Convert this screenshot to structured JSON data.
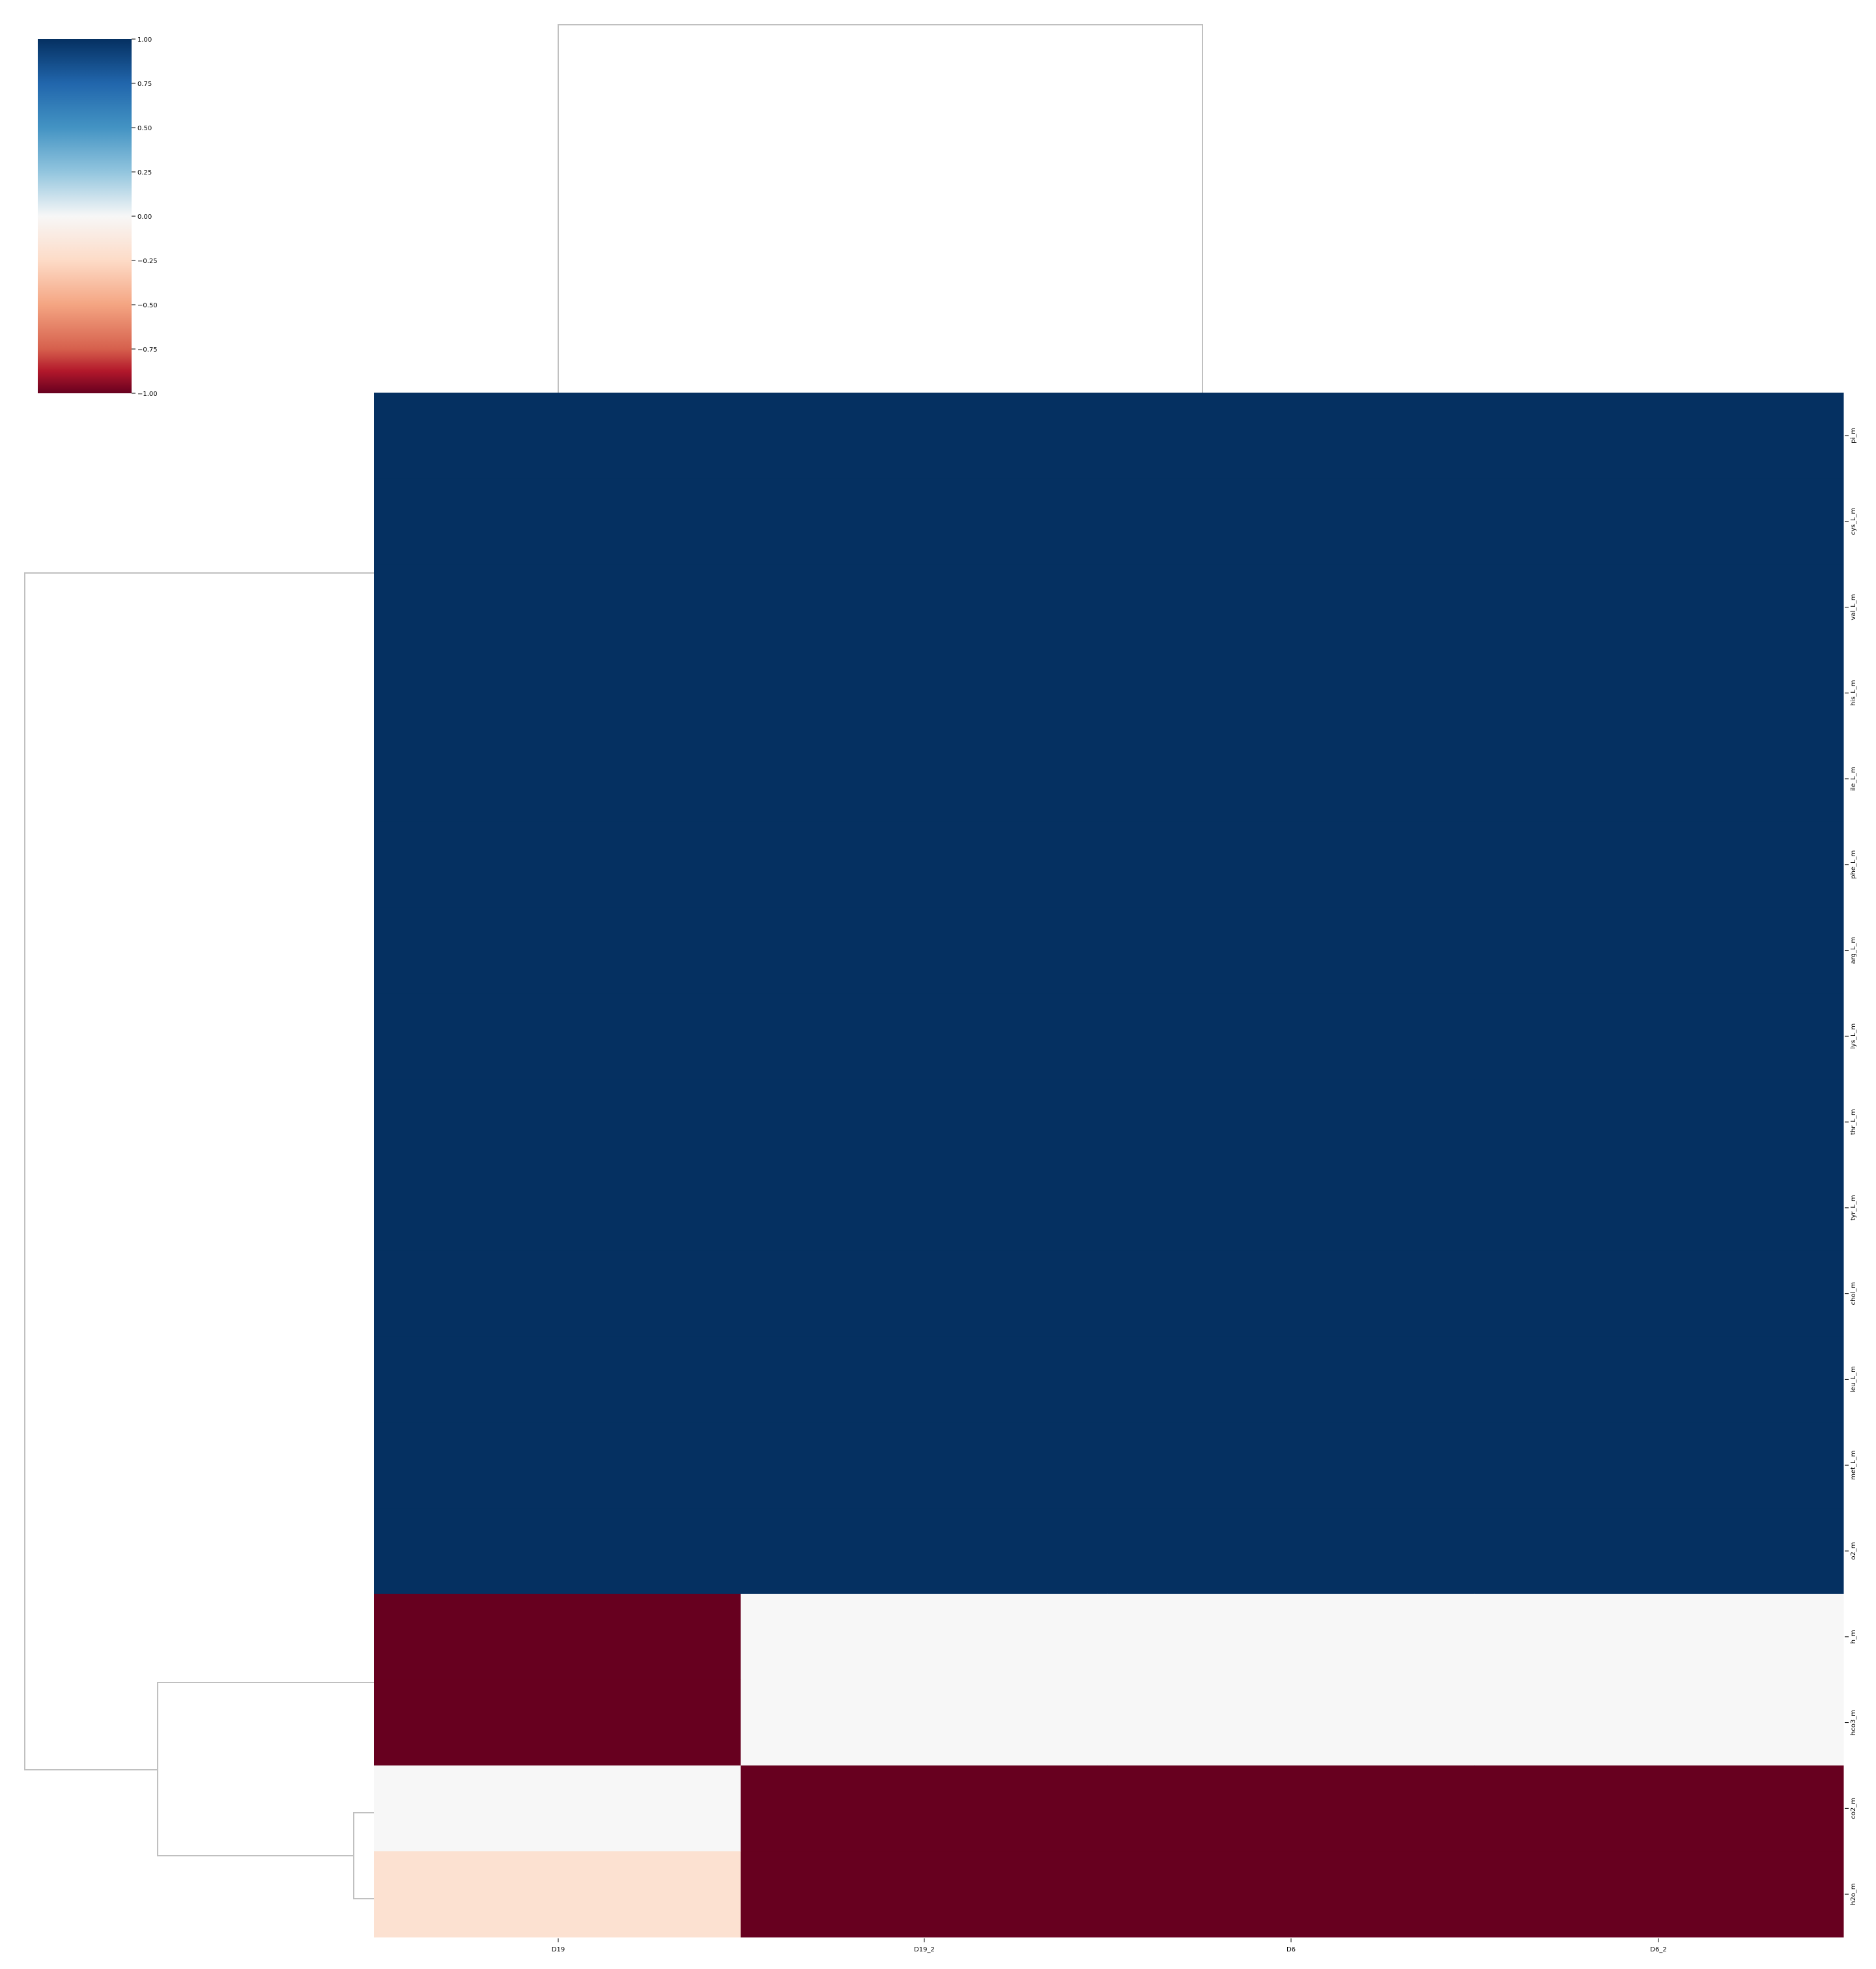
{
  "chart_data": {
    "type": "heatmap",
    "title": "",
    "xlabel": "",
    "ylabel": "",
    "columns": [
      "D19",
      "D19_2",
      "D6",
      "D6_2"
    ],
    "rows": [
      "pi_m",
      "cys_L_m",
      "val_L_m",
      "his_L_m",
      "ile_L_m",
      "phe_L_m",
      "arg_L_m",
      "lys_L_m",
      "thr_L_m",
      "tyr_L_m",
      "chol_m",
      "leu_L_m",
      "met_L_m",
      "o2_m",
      "h_m",
      "hco3_m",
      "co2_m",
      "h2o_m"
    ],
    "values": [
      [
        1,
        1,
        1,
        1
      ],
      [
        1,
        1,
        1,
        1
      ],
      [
        1,
        1,
        1,
        1
      ],
      [
        1,
        1,
        1,
        1
      ],
      [
        1,
        1,
        1,
        1
      ],
      [
        1,
        1,
        1,
        1
      ],
      [
        1,
        1,
        1,
        1
      ],
      [
        1,
        1,
        1,
        1
      ],
      [
        1,
        1,
        1,
        1
      ],
      [
        1,
        1,
        1,
        1
      ],
      [
        1,
        1,
        1,
        1
      ],
      [
        1,
        1,
        1,
        1
      ],
      [
        1,
        1,
        1,
        1
      ],
      [
        1,
        1,
        1,
        1
      ],
      [
        -1,
        0,
        0,
        0
      ],
      [
        -1,
        0,
        0,
        0
      ],
      [
        0,
        -1,
        -1,
        -1
      ],
      [
        -0.2,
        -1,
        -1,
        -1
      ]
    ],
    "colormap": "RdBu",
    "vmin": -1,
    "vmax": 1,
    "colorbar_ticks": [
      "1.00",
      "0.75",
      "0.50",
      "0.25",
      "0.00",
      "−0.25",
      "−0.50",
      "−0.75",
      "−1.00"
    ],
    "colors": {
      "blue_max": "#053061",
      "red_min": "#67001f",
      "neutral": "#f7f7f7",
      "dendrogram": "#c0c0c0"
    }
  }
}
